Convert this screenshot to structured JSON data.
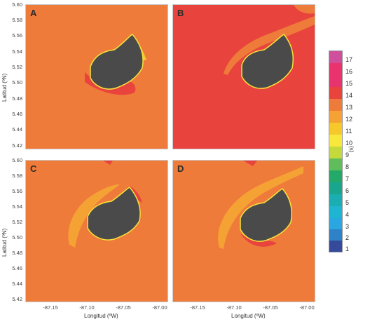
{
  "panels": [
    {
      "letter": "A",
      "background": "#ef7b3b"
    },
    {
      "letter": "B",
      "background": "#e8443d"
    },
    {
      "letter": "C",
      "background": "#ef7b3b"
    },
    {
      "letter": "D",
      "background": "#ef7b3b"
    }
  ],
  "y_axis": {
    "label": "Latitud (ºN)",
    "ticks": [
      "5.60",
      "5.58",
      "5.56",
      "5.54",
      "5.52",
      "5.50",
      "5.48",
      "5.46",
      "5.44",
      "5.42"
    ]
  },
  "x_axis": {
    "label": "Longitud (ºW)",
    "ticks": [
      "-87.15",
      "-87.10",
      "-87.05",
      "-87.00"
    ]
  },
  "colorbar": {
    "unit": "(s)",
    "labels": [
      "17",
      "16",
      "15",
      "14",
      "13",
      "12",
      "11",
      "10",
      "9",
      "8",
      "7",
      "6",
      "5",
      "4",
      "3",
      "2",
      "1"
    ],
    "colors": [
      "#d04f9c",
      "#e8336f",
      "#e8336f",
      "#e8443d",
      "#ef7b3b",
      "#f5a235",
      "#f7c82a",
      "#f8e83c",
      "#c3d93c",
      "#5fbe5b",
      "#24a96a",
      "#19a58e",
      "#1aaeb2",
      "#20b4d3",
      "#2aa7e1",
      "#2f82c8",
      "#354a9c"
    ]
  },
  "island": {
    "color": "#4a4a4a",
    "shore_color": "#f7e23a"
  }
}
